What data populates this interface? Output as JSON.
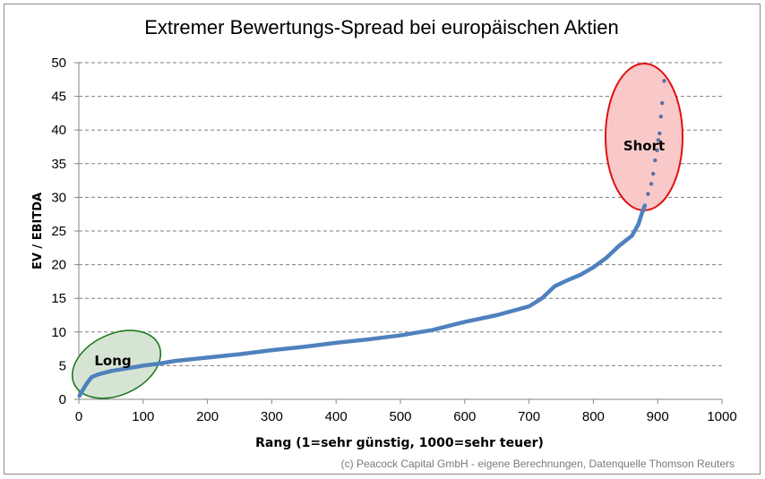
{
  "chart_data": {
    "type": "scatter",
    "title": "Extremer Bewertungs-Spread  bei europäischen Aktien",
    "xlabel": "Rang (1=sehr günstig, 1000=sehr teuer)",
    "ylabel": "EV / EBITDA",
    "xlim": [
      0,
      1000
    ],
    "ylim": [
      0,
      50
    ],
    "x_ticks": [
      "0",
      "100",
      "200",
      "300",
      "400",
      "500",
      "600",
      "700",
      "800",
      "900",
      "1000"
    ],
    "y_ticks": [
      "0",
      "5",
      "10",
      "15",
      "20",
      "25",
      "30",
      "35",
      "40",
      "45",
      "50"
    ],
    "grid": "horizontal dashed",
    "legend": "none",
    "series": [
      {
        "name": "EV/EBITDA",
        "color": "#4f81bd",
        "x": [
          1,
          5,
          10,
          15,
          20,
          30,
          50,
          75,
          100,
          125,
          150,
          200,
          250,
          300,
          350,
          400,
          450,
          500,
          550,
          600,
          650,
          700,
          720,
          740,
          760,
          780,
          800,
          820,
          840,
          860,
          870,
          875,
          880,
          885,
          890,
          893,
          896,
          899,
          901,
          903,
          905,
          907,
          910
        ],
        "y": [
          0.5,
          1.2,
          2.0,
          2.7,
          3.3,
          3.7,
          4.2,
          4.6,
          5.0,
          5.3,
          5.7,
          6.2,
          6.7,
          7.3,
          7.8,
          8.4,
          8.9,
          9.5,
          10.3,
          11.5,
          12.5,
          13.8,
          15.0,
          16.8,
          17.7,
          18.5,
          19.6,
          21.0,
          22.8,
          24.3,
          26.0,
          27.5,
          28.8,
          30.5,
          32.0,
          33.5,
          35.5,
          37.0,
          38.5,
          39.5,
          42.0,
          44.0,
          47.3
        ]
      }
    ],
    "annotations": [
      {
        "label": "Long",
        "shape": "ellipse",
        "fill": "#d7e4d3",
        "stroke": "#1e7a1e",
        "region": "rank ~0-130, EV/EBITDA ~0-10"
      },
      {
        "label": "Short",
        "shape": "ellipse",
        "fill": "#f9c8c8",
        "stroke": "#e01010",
        "region": "rank ~820-940, EV/EBITDA ~28-50"
      }
    ],
    "source_note": "(c) Peacock Capital GmbH - eigene Berechnungen, Datenquelle Thomson Reuters"
  },
  "labels": {
    "title": "Extremer Bewertungs-Spread  bei europäischen Aktien",
    "xlabel": "Rang (1=sehr günstig, 1000=sehr teuer)",
    "ylabel": "EV / EBITDA",
    "long": "Long",
    "short": "Short",
    "source": "(c) Peacock Capital GmbH - eigene Berechnungen, Datenquelle Thomson Reuters"
  }
}
